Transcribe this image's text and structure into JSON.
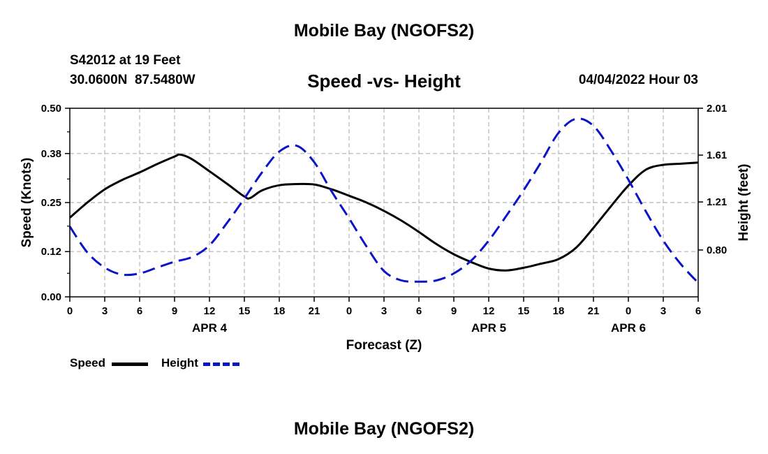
{
  "page": {
    "title": "Mobile Bay (NGOFS2)",
    "station_line": "S42012 at 19 Feet",
    "coords_line": "30.0600N  87.5480W",
    "datetime": "04/04/2022 Hour 03",
    "footer_title": "Mobile Bay (NGOFS2)"
  },
  "chart_data": {
    "type": "line",
    "title": "Speed -vs- Height",
    "xlabel": "Forecast (Z)",
    "ylabel_left": "Speed (Knots)",
    "ylabel_right": "Height (feet)",
    "x_ticks": [
      "0",
      "3",
      "6",
      "9",
      "12",
      "15",
      "18",
      "21",
      "0",
      "3",
      "6",
      "9",
      "12",
      "15",
      "18",
      "21",
      "0",
      "3",
      "6"
    ],
    "date_labels": [
      {
        "label": "APR 4",
        "hour_index": 12
      },
      {
        "label": "APR 5",
        "hour_index": 36
      },
      {
        "label": "APR 6",
        "hour_index": 48
      }
    ],
    "xlim": [
      0,
      54
    ],
    "ylim_left": [
      0,
      0.5
    ],
    "left_ticks": [
      "0.00",
      "0.12",
      "0.25",
      "0.38",
      "0.50"
    ],
    "ylim_right": [
      0.4,
      2.01
    ],
    "right_ticks": [
      "0.80",
      "1.21",
      "1.61",
      "2.01"
    ],
    "grid": true,
    "series": [
      {
        "name": "Speed",
        "axis": "left",
        "color": "#000000",
        "style": "solid",
        "x": [
          0,
          1.5,
          3,
          4.5,
          6,
          7.5,
          9,
          9.5,
          10.5,
          12,
          13.5,
          15,
          15.5,
          16.5,
          18,
          19.5,
          21,
          22.5,
          24,
          25.5,
          27,
          28.5,
          30,
          31.5,
          33,
          34.5,
          36,
          37.5,
          39,
          40.5,
          42,
          43.5,
          45,
          46.5,
          48,
          49.5,
          51,
          52.5,
          54
        ],
        "y": [
          0.21,
          0.25,
          0.285,
          0.31,
          0.33,
          0.352,
          0.372,
          0.377,
          0.365,
          0.333,
          0.3,
          0.266,
          0.262,
          0.282,
          0.296,
          0.299,
          0.298,
          0.285,
          0.268,
          0.25,
          0.228,
          0.202,
          0.172,
          0.14,
          0.113,
          0.092,
          0.075,
          0.07,
          0.077,
          0.088,
          0.1,
          0.13,
          0.183,
          0.24,
          0.295,
          0.337,
          0.35,
          0.353,
          0.356
        ]
      },
      {
        "name": "Height",
        "axis": "right",
        "color": "#0a14c8",
        "style": "dashed",
        "x": [
          0,
          1.5,
          3,
          4.5,
          6,
          7.5,
          9,
          10.5,
          12,
          13.5,
          15,
          16.5,
          18,
          19.5,
          21,
          22.5,
          24,
          25.5,
          27,
          28.5,
          30,
          31.5,
          33,
          34.5,
          36,
          37.5,
          39,
          40.5,
          42,
          43.5,
          45,
          46.5,
          48,
          49.5,
          51,
          52.5,
          54
        ],
        "y": [
          1.0,
          0.78,
          0.65,
          0.59,
          0.6,
          0.65,
          0.7,
          0.74,
          0.84,
          1.03,
          1.24,
          1.46,
          1.64,
          1.69,
          1.55,
          1.3,
          1.07,
          0.83,
          0.62,
          0.54,
          0.53,
          0.54,
          0.6,
          0.71,
          0.88,
          1.09,
          1.31,
          1.55,
          1.8,
          1.92,
          1.86,
          1.65,
          1.4,
          1.13,
          0.88,
          0.68,
          0.52
        ]
      }
    ]
  }
}
